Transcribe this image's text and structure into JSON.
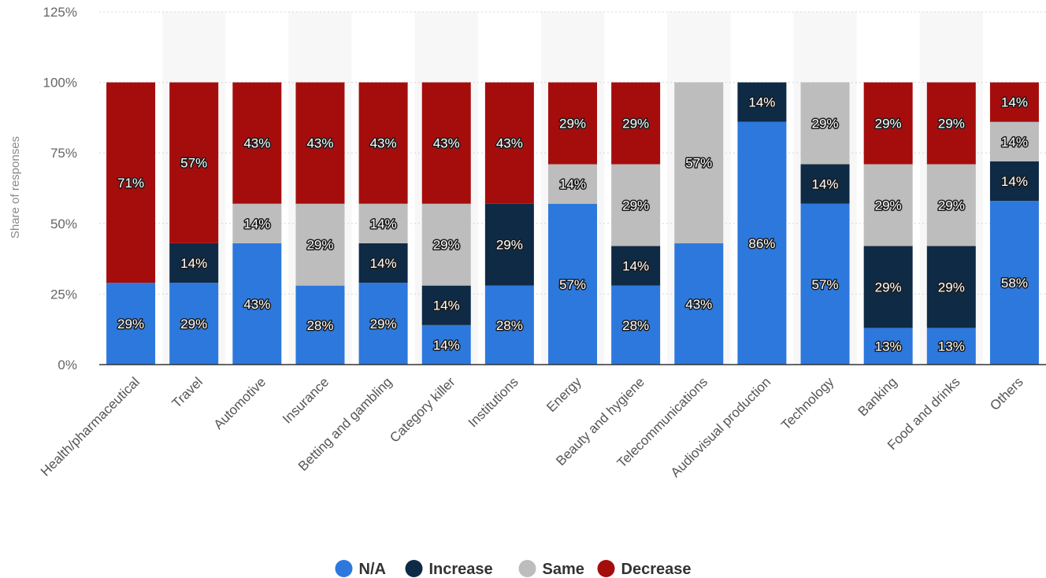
{
  "chart_data": {
    "type": "bar",
    "stacked": true,
    "ylabel": "Share of responses",
    "ylim": [
      0,
      125
    ],
    "yticks": [
      0,
      25,
      50,
      75,
      100,
      125
    ],
    "ytick_labels": [
      "0%",
      "25%",
      "50%",
      "75%",
      "100%",
      "125%"
    ],
    "grid": true,
    "legend_position": "bottom",
    "categories": [
      "Health/pharmaceutical",
      "Travel",
      "Automotive",
      "Insurance",
      "Betting and gambling",
      "Category killer",
      "Institutions",
      "Energy",
      "Beauty and hygiene",
      "Telecommunications",
      "Audiovisual production",
      "Technology",
      "Banking",
      "Food and drinks",
      "Others"
    ],
    "series": [
      {
        "name": "N/A",
        "color": "#2d78dc",
        "values": [
          29,
          29,
          43,
          28,
          29,
          14,
          28,
          57,
          28,
          43,
          86,
          57,
          13,
          13,
          58
        ]
      },
      {
        "name": "Increase",
        "color": "#0f2a45",
        "values": [
          0,
          14,
          0,
          0,
          14,
          14,
          29,
          0,
          14,
          0,
          14,
          14,
          29,
          29,
          14
        ]
      },
      {
        "name": "Same",
        "color": "#bdbdbd",
        "values": [
          0,
          0,
          14,
          29,
          14,
          29,
          0,
          14,
          29,
          57,
          0,
          29,
          29,
          29,
          14
        ]
      },
      {
        "name": "Decrease",
        "color": "#a50d0d",
        "values": [
          71,
          57,
          43,
          43,
          43,
          43,
          43,
          29,
          29,
          0,
          0,
          0,
          29,
          29,
          14
        ]
      }
    ]
  }
}
